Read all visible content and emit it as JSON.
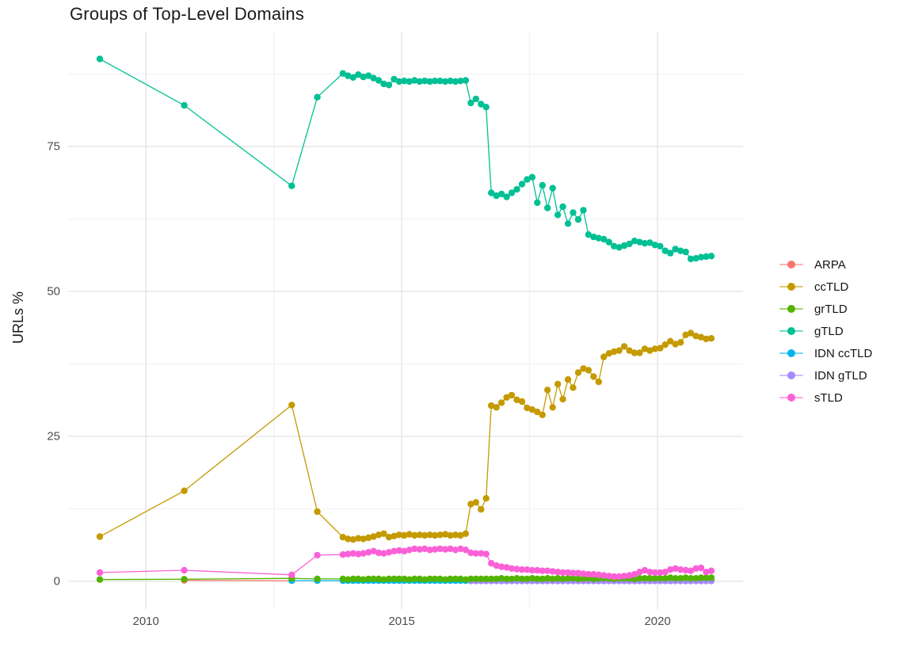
{
  "title": "Groups of Top-Level Domains",
  "chart_data": {
    "type": "line",
    "title": "Groups of Top-Level Domains",
    "xlabel": "",
    "ylabel": "URLs %",
    "xlim": [
      2008.48,
      2021.67
    ],
    "ylim": [
      -4.8,
      94.8
    ],
    "x_ticks": [
      2010,
      2015,
      2020
    ],
    "x_minor_ticks": [
      2012.5,
      2017.5
    ],
    "y_ticks": [
      0,
      25,
      50,
      75
    ],
    "y_minor_ticks": [
      12.5,
      37.5,
      62.5,
      87.5
    ],
    "grid": true,
    "legend_position": "right",
    "point_style": "line-with-dots",
    "x": [
      2009.1,
      2010.75,
      2012.85,
      2013.35,
      2013.85,
      2013.95,
      2014.05,
      2014.15,
      2014.25,
      2014.35,
      2014.45,
      2014.55,
      2014.65,
      2014.75,
      2014.85,
      2014.95,
      2015.05,
      2015.15,
      2015.25,
      2015.35,
      2015.45,
      2015.55,
      2015.65,
      2015.75,
      2015.85,
      2015.95,
      2016.05,
      2016.15,
      2016.25,
      2016.35,
      2016.45,
      2016.55,
      2016.65,
      2016.75,
      2016.85,
      2016.95,
      2017.05,
      2017.15,
      2017.25,
      2017.35,
      2017.45,
      2017.55,
      2017.65,
      2017.75,
      2017.85,
      2017.95,
      2018.05,
      2018.15,
      2018.25,
      2018.35,
      2018.45,
      2018.55,
      2018.65,
      2018.75,
      2018.85,
      2018.95,
      2019.05,
      2019.15,
      2019.25,
      2019.35,
      2019.45,
      2019.55,
      2019.65,
      2019.75,
      2019.85,
      2019.95,
      2020.05,
      2020.15,
      2020.25,
      2020.35,
      2020.45,
      2020.55,
      2020.65,
      2020.75,
      2020.85,
      2020.95,
      2021.05
    ],
    "series": [
      {
        "name": "ARPA",
        "color": "#F8766D",
        "values": [
          null,
          0.15,
          0.1,
          null,
          null,
          null,
          null,
          null,
          null,
          null,
          null,
          null,
          null,
          null,
          null,
          null,
          null,
          null,
          null,
          null,
          null,
          null,
          null,
          null,
          null,
          null,
          null,
          null,
          null,
          null,
          null,
          null,
          null,
          null,
          null,
          null,
          null,
          null,
          null,
          null,
          null,
          null,
          null,
          null,
          null,
          null,
          null,
          null,
          null,
          null,
          null,
          null,
          null,
          null,
          null,
          null,
          null,
          null,
          null,
          null,
          null,
          null,
          null,
          null,
          null,
          null,
          null,
          null,
          null,
          null,
          null,
          null,
          null,
          null,
          null,
          null,
          null
        ]
      },
      {
        "name": "ccTLD",
        "color": "#C49A00",
        "values": [
          7.7,
          15.6,
          30.4,
          12.0,
          7.6,
          7.3,
          7.2,
          7.4,
          7.3,
          7.5,
          7.7,
          8.0,
          8.2,
          7.6,
          7.8,
          8.0,
          7.9,
          8.1,
          7.9,
          8.0,
          7.9,
          8.0,
          7.9,
          8.0,
          8.1,
          7.9,
          8.0,
          7.9,
          8.2,
          13.3,
          13.6,
          12.4,
          14.3,
          30.3,
          30.0,
          30.8,
          31.7,
          32.1,
          31.3,
          31.0,
          29.9,
          29.6,
          29.2,
          28.7,
          33.0,
          30.0,
          34.0,
          31.4,
          34.8,
          33.4,
          36.0,
          36.7,
          36.4,
          35.3,
          34.4,
          38.7,
          39.3,
          39.6,
          39.8,
          40.5,
          39.8,
          39.4,
          39.4,
          40.1,
          39.8,
          40.1,
          40.2,
          40.8,
          41.4,
          40.9,
          41.2,
          42.5,
          42.8,
          42.3,
          42.1,
          41.8,
          41.9
        ]
      },
      {
        "name": "grTLD",
        "color": "#53B400",
        "values": [
          0.3,
          0.35,
          0.5,
          0.4,
          0.4,
          0.3,
          0.4,
          0.4,
          0.3,
          0.4,
          0.4,
          0.4,
          0.3,
          0.4,
          0.4,
          0.4,
          0.4,
          0.3,
          0.4,
          0.4,
          0.3,
          0.4,
          0.4,
          0.4,
          0.3,
          0.4,
          0.4,
          0.4,
          0.3,
          0.4,
          0.4,
          0.4,
          0.4,
          0.4,
          0.4,
          0.5,
          0.4,
          0.4,
          0.5,
          0.4,
          0.4,
          0.5,
          0.4,
          0.4,
          0.5,
          0.4,
          0.5,
          0.4,
          0.5,
          0.5,
          0.4,
          0.5,
          0.5,
          0.4,
          0.5,
          0.5,
          0.5,
          0.4,
          0.5,
          0.5,
          0.5,
          0.4,
          0.5,
          0.5,
          0.5,
          0.5,
          0.5,
          0.5,
          0.6,
          0.5,
          0.5,
          0.6,
          0.5,
          0.5,
          0.6,
          0.6,
          0.6
        ]
      },
      {
        "name": "gTLD",
        "color": "#00C094",
        "values": [
          90.1,
          82.1,
          68.2,
          83.5,
          87.6,
          87.2,
          86.9,
          87.4,
          87.0,
          87.2,
          86.8,
          86.4,
          85.8,
          85.6,
          86.6,
          86.2,
          86.3,
          86.2,
          86.4,
          86.2,
          86.3,
          86.2,
          86.3,
          86.3,
          86.2,
          86.3,
          86.2,
          86.3,
          86.4,
          82.5,
          83.2,
          82.3,
          81.8,
          67.0,
          66.5,
          66.8,
          66.3,
          67.0,
          67.6,
          68.5,
          69.3,
          69.7,
          65.3,
          68.3,
          64.4,
          67.8,
          63.2,
          64.6,
          61.7,
          63.6,
          62.4,
          64.0,
          59.8,
          59.4,
          59.2,
          59.0,
          58.5,
          57.8,
          57.6,
          57.9,
          58.2,
          58.7,
          58.5,
          58.3,
          58.4,
          58.0,
          57.8,
          57.0,
          56.6,
          57.3,
          57.0,
          56.8,
          55.6,
          55.7,
          55.9,
          56.0,
          56.1
        ]
      },
      {
        "name": "IDN ccTLD",
        "color": "#00B6EB",
        "values": [
          null,
          null,
          0.1,
          0.1,
          0.1,
          0.1,
          0.1,
          0.1,
          0.1,
          0.1,
          0.1,
          0.1,
          0.1,
          0.1,
          0.1,
          0.1,
          0.1,
          0.1,
          0.1,
          0.1,
          0.1,
          0.1,
          0.1,
          0.1,
          0.1,
          0.1,
          0.1,
          0.1,
          0.1,
          0.1,
          0.1,
          0.1,
          0.1,
          0.1,
          0.1,
          0.1,
          0.1,
          0.1,
          0.1,
          0.1,
          0.1,
          0.1,
          0.1,
          0.1,
          0.1,
          0.1,
          0.1,
          0.1,
          0.1,
          0.1,
          0.1,
          0.1,
          0.1,
          0.1,
          0.1,
          0.1,
          0.1,
          0.1,
          0.1,
          0.1,
          0.1,
          0.1,
          0.1,
          0.1,
          0.1,
          0.1,
          0.1,
          0.1,
          0.1,
          0.1,
          0.1,
          0.1,
          0.1,
          0.1,
          0.1,
          0.1,
          0.1
        ]
      },
      {
        "name": "IDN gTLD",
        "color": "#A58AFF",
        "values": [
          null,
          null,
          null,
          null,
          null,
          null,
          null,
          null,
          null,
          null,
          null,
          null,
          null,
          null,
          null,
          null,
          null,
          null,
          null,
          null,
          null,
          null,
          null,
          null,
          null,
          null,
          null,
          null,
          null,
          0.05,
          0.05,
          0.05,
          0.05,
          0.05,
          0.05,
          0.05,
          0.05,
          0.05,
          0.05,
          0.05,
          0.05,
          0.05,
          0.05,
          0.05,
          0.05,
          0.05,
          0.05,
          0.05,
          0.05,
          0.05,
          0.05,
          0.05,
          0.05,
          0.05,
          0.05,
          0.05,
          0.05,
          0.05,
          0.05,
          0.05,
          0.05,
          0.05,
          0.05,
          0.05,
          0.05,
          0.05,
          0.05,
          0.05,
          0.05,
          0.05,
          0.05,
          0.05,
          0.05,
          0.05,
          0.05,
          0.05,
          0.05
        ]
      },
      {
        "name": "sTLD",
        "color": "#FB61D7",
        "values": [
          1.5,
          1.9,
          1.1,
          4.5,
          4.6,
          4.7,
          4.8,
          4.7,
          4.8,
          5.0,
          5.2,
          4.9,
          4.8,
          5.0,
          5.2,
          5.3,
          5.2,
          5.4,
          5.6,
          5.5,
          5.6,
          5.4,
          5.5,
          5.6,
          5.5,
          5.6,
          5.4,
          5.6,
          5.4,
          4.9,
          4.8,
          4.8,
          4.7,
          3.1,
          2.7,
          2.5,
          2.4,
          2.2,
          2.1,
          2.0,
          2.0,
          1.9,
          1.9,
          1.8,
          1.8,
          1.7,
          1.6,
          1.5,
          1.5,
          1.4,
          1.4,
          1.3,
          1.2,
          1.2,
          1.1,
          1.0,
          0.9,
          0.8,
          0.8,
          0.9,
          1.0,
          1.2,
          1.6,
          1.9,
          1.6,
          1.5,
          1.5,
          1.6,
          2.0,
          2.2,
          2.0,
          1.9,
          1.8,
          2.2,
          2.3,
          1.6,
          1.8
        ]
      }
    ]
  }
}
